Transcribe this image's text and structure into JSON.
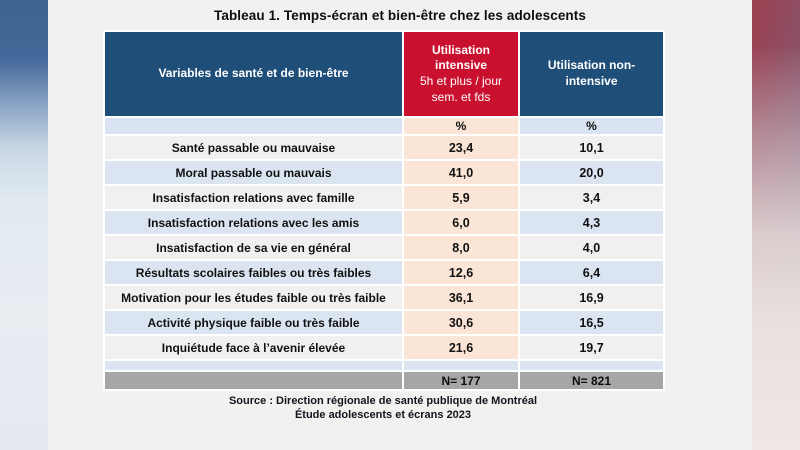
{
  "chart_data": {
    "type": "table",
    "title": "Tableau 1. Temps-écran et bien-être chez les adolescents",
    "columns": {
      "variables": "Variables de santé et de bien-être",
      "intensive_title": "Utilisation intensive",
      "intensive_subtitle": "5h et plus / jour sem. et fds",
      "non_intensive": "Utilisation non-intensive"
    },
    "unit_row": {
      "label": "",
      "intensive": "%",
      "non_intensive": "%"
    },
    "rows": [
      [
        "Santé passable ou mauvaise",
        "23,4",
        "10,1"
      ],
      [
        "Moral passable ou mauvais",
        "41,0",
        "20,0"
      ],
      [
        "Insatisfaction relations avec famille",
        "5,9",
        "3,4"
      ],
      [
        "Insatisfaction relations avec les amis",
        "6,0",
        "4,3"
      ],
      [
        "Insatisfaction de sa vie en général",
        "8,0",
        "4,0"
      ],
      [
        "Résultats scolaires faibles ou très faibles",
        "12,6",
        "6,4"
      ],
      [
        "Motivation pour les études faible ou très faible",
        "36,1",
        "16,9"
      ],
      [
        "Activité physique faible ou très faible",
        "30,6",
        "16,5"
      ],
      [
        "Inquiétude face à l’avenir élevée",
        "21,6",
        "19,7"
      ]
    ],
    "totals_row": {
      "label": "",
      "intensive": "N= 177",
      "non_intensive": "N= 821"
    },
    "source_line1": "Source : Direction régionale de santé publique de Montréal",
    "source_line2": "Étude adolescents et écrans 2023"
  },
  "colors": {
    "header_blue": "#1f4e79",
    "intensive_red": "#c9102e",
    "intensive_peach": "#fbe5d6",
    "row_blue": "#dbe5f1",
    "row_light": "#f1f0ee",
    "totals_gray": "#a6a6a6",
    "slide_background": "#f2f1ef"
  }
}
